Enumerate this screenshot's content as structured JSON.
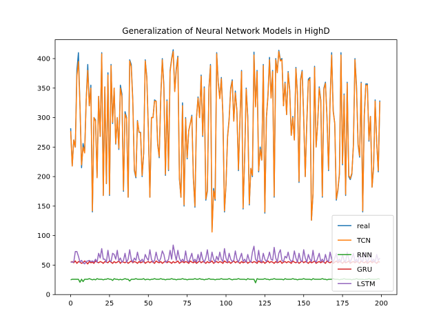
{
  "chart_data": {
    "type": "line",
    "title": "Generalization of Neural Network Models in HighD",
    "xlabel": "",
    "ylabel": "",
    "xlim": [
      -10,
      210
    ],
    "ylim": [
      0,
      432
    ],
    "xticks": [
      0,
      25,
      50,
      75,
      100,
      125,
      150,
      175,
      200
    ],
    "yticks": [
      0,
      50,
      100,
      150,
      200,
      250,
      300,
      350,
      400
    ],
    "grid": false,
    "legend_position": "lower-right",
    "n_points": 200,
    "series": [
      {
        "name": "real",
        "color": "#1f77b4",
        "values": [
          282,
          218,
          262,
          250,
          380,
          410,
          320,
          215,
          256,
          242,
          330,
          390,
          320,
          355,
          140,
          300,
          296,
          200,
          336,
          268,
          410,
          168,
          352,
          188,
          376,
          168,
          390,
          290,
          350,
          255,
          300,
          246,
          355,
          340,
          175,
          310,
          300,
          165,
          398,
          390,
          330,
          210,
          198,
          295,
          275,
          275,
          200,
          240,
          398,
          370,
          282,
          165,
          300,
          300,
          330,
          328,
          256,
          232,
          336,
          400,
          355,
          202,
          330,
          210,
          380,
          400,
          415,
          345,
          384,
          404,
          196,
          165,
          325,
          150,
          300,
          230,
          278,
          290,
          304,
          196,
          148,
          300,
          335,
          300,
          372,
          268,
          352,
          160,
          175,
          350,
          390,
          108,
          180,
          160,
          410,
          360,
          334,
          368,
          305,
          140,
          186,
          268,
          298,
          350,
          364,
          294,
          345,
          312,
          210,
          298,
          380,
          145,
          232,
          350,
          302,
          152,
          214,
          200,
          411,
          320,
          380,
          208,
          250,
          228,
          390,
          138,
          300,
          338,
          402,
          335,
          380,
          165,
          400,
          378,
          414,
          398,
          400,
          320,
          360,
          305,
          378,
          347,
          270,
          302,
          262,
          385,
          340,
          190,
          365,
          380,
          300,
          200,
          292,
          365,
          368,
          126,
          170,
          387,
          250,
          290,
          352,
          330,
          165,
          350,
          360,
          300,
          210,
          330,
          410,
          312,
          290,
          160,
          176,
          204,
          410,
          220,
          340,
          168,
          360,
          200,
          195,
          204,
          254,
          400,
          354,
          254,
          233,
          360,
          140,
          304,
          357,
          357,
          260,
          302,
          182,
          215,
          330,
          258,
          208,
          329
        ]
      },
      {
        "name": "TCN",
        "color": "#ff7f0e",
        "values": [
          277,
          218,
          262,
          250,
          370,
          395,
          320,
          220,
          250,
          240,
          330,
          380,
          320,
          350,
          142,
          300,
          294,
          198,
          336,
          268,
          408,
          168,
          352,
          188,
          372,
          170,
          388,
          292,
          350,
          256,
          300,
          248,
          350,
          335,
          177,
          306,
          298,
          165,
          396,
          386,
          328,
          212,
          200,
          294,
          276,
          274,
          202,
          240,
          396,
          368,
          280,
          165,
          300,
          300,
          328,
          328,
          254,
          234,
          334,
          398,
          352,
          204,
          328,
          212,
          378,
          398,
          412,
          344,
          380,
          402,
          198,
          165,
          320,
          152,
          298,
          232,
          278,
          290,
          302,
          198,
          150,
          300,
          333,
          300,
          370,
          270,
          350,
          162,
          177,
          348,
          388,
          106,
          176,
          162,
          408,
          358,
          332,
          366,
          304,
          142,
          188,
          266,
          296,
          348,
          362,
          294,
          342,
          312,
          212,
          298,
          378,
          147,
          232,
          348,
          300,
          154,
          214,
          202,
          406,
          318,
          378,
          210,
          246,
          228,
          388,
          140,
          300,
          336,
          398,
          333,
          378,
          167,
          398,
          376,
          412,
          396,
          398,
          320,
          358,
          305,
          376,
          345,
          270,
          300,
          262,
          383,
          338,
          192,
          362,
          378,
          300,
          200,
          290,
          362,
          366,
          126,
          172,
          385,
          250,
          290,
          350,
          328,
          167,
          348,
          358,
          300,
          212,
          328,
          406,
          310,
          290,
          162,
          178,
          206,
          406,
          222,
          338,
          170,
          358,
          202,
          197,
          206,
          252,
          398,
          350,
          256,
          235,
          358,
          142,
          302,
          355,
          355,
          262,
          302,
          182,
          217,
          328,
          258,
          210,
          327
        ]
      },
      {
        "name": "RNN",
        "color": "#2ca02c",
        "values": [
          25,
          26,
          26,
          26,
          26,
          26,
          21,
          26,
          22,
          26,
          26,
          26,
          27,
          26,
          25,
          26,
          25,
          27,
          26,
          26,
          26,
          25,
          26,
          26,
          27,
          26,
          26,
          24,
          27,
          26,
          26,
          25,
          26,
          25,
          26,
          27,
          26,
          26,
          23,
          26,
          26,
          26,
          27,
          26,
          26,
          26,
          26,
          27,
          25,
          26,
          26,
          25,
          26,
          26,
          27,
          26,
          26,
          26,
          27,
          26,
          26,
          25,
          26,
          26,
          26,
          27,
          26,
          26,
          25,
          26,
          26,
          26,
          27,
          26,
          26,
          25,
          26,
          26,
          26,
          26,
          27,
          26,
          26,
          27,
          26,
          26,
          25,
          26,
          26,
          27,
          26,
          26,
          26,
          25,
          26,
          26,
          26,
          27,
          26,
          26,
          26,
          26,
          27,
          26,
          25,
          26,
          26,
          26,
          27,
          26,
          26,
          26,
          26,
          25,
          27,
          26,
          26,
          26,
          26,
          20,
          27,
          26,
          26,
          26,
          26,
          27,
          26,
          26,
          25,
          26,
          26,
          27,
          26,
          26,
          26,
          26,
          26,
          25,
          27,
          26,
          26,
          26,
          26,
          27,
          26,
          26,
          25,
          26,
          26,
          26,
          27,
          26,
          26,
          26,
          26,
          25,
          27,
          26,
          26,
          26,
          26,
          26,
          27,
          26,
          26,
          25,
          26,
          26,
          26,
          27,
          26,
          26,
          26,
          25,
          26,
          26,
          27,
          26,
          26,
          26,
          26,
          25,
          26,
          26,
          27,
          26,
          26,
          26,
          26,
          25,
          26,
          26,
          27,
          26,
          26,
          26,
          26,
          26,
          27,
          26
        ]
      },
      {
        "name": "GRU",
        "color": "#d62728",
        "values": [
          55,
          56,
          54,
          57,
          53,
          56,
          55,
          53,
          54,
          57,
          55,
          52,
          56,
          54,
          55,
          53,
          57,
          55,
          54,
          56,
          55,
          53,
          56,
          55,
          54,
          57,
          55,
          53,
          56,
          54,
          55,
          57,
          53,
          56,
          55,
          54,
          56,
          53,
          55,
          57,
          54,
          56,
          55,
          53,
          56,
          54,
          55,
          57,
          53,
          55,
          56,
          54,
          56,
          55,
          53,
          57,
          55,
          54,
          56,
          53,
          55,
          57,
          54,
          56,
          55,
          53,
          56,
          54,
          55,
          57,
          53,
          55,
          56,
          54,
          56,
          55,
          53,
          57,
          55,
          54,
          56,
          53,
          55,
          57,
          54,
          56,
          55,
          53,
          56,
          54,
          55,
          57,
          53,
          55,
          56,
          54,
          56,
          55,
          53,
          57,
          55,
          54,
          56,
          53,
          55,
          57,
          54,
          56,
          55,
          53,
          56,
          54,
          55,
          57,
          53,
          55,
          56,
          54,
          56,
          55,
          53,
          57,
          55,
          54,
          56,
          53,
          55,
          57,
          54,
          56,
          55,
          53,
          56,
          54,
          55,
          57,
          53,
          55,
          56,
          54,
          56,
          55,
          53,
          57,
          55,
          54,
          56,
          53,
          55,
          57,
          54,
          56,
          55,
          53,
          56,
          54,
          55,
          57,
          53,
          55,
          56,
          54,
          56,
          55,
          53,
          57,
          55,
          54,
          56,
          53,
          55,
          57,
          54,
          56,
          55,
          53,
          56,
          54,
          55,
          57,
          53,
          55,
          56,
          54,
          56,
          55,
          53,
          57,
          55,
          54,
          56,
          53,
          55,
          57,
          54,
          56,
          55,
          53,
          56,
          55
        ]
      },
      {
        "name": "LSTM",
        "color": "#9467bd",
        "values": [
          55,
          55,
          55,
          73,
          73,
          65,
          55,
          58,
          54,
          52,
          56,
          57,
          58,
          56,
          57,
          55,
          60,
          55,
          70,
          62,
          78,
          60,
          60,
          55,
          75,
          58,
          56,
          70,
          68,
          60,
          75,
          57,
          62,
          55,
          58,
          70,
          55,
          60,
          76,
          60,
          55,
          62,
          58,
          72,
          60,
          56,
          60,
          55,
          68,
          62,
          58,
          76,
          60,
          55,
          58,
          72,
          60,
          56,
          62,
          74,
          68,
          55,
          56,
          60,
          75,
          60,
          84,
          70,
          58,
          75,
          62,
          56,
          60,
          56,
          74,
          58,
          55,
          62,
          70,
          56,
          60,
          55,
          68,
          56,
          72,
          60,
          55,
          62,
          76,
          58,
          56,
          72,
          60,
          55,
          65,
          58,
          72,
          60,
          56,
          78,
          62,
          55,
          70,
          60,
          56,
          58,
          74,
          60,
          55,
          62,
          70,
          56,
          60,
          55,
          68,
          58,
          55,
          72,
          82,
          60,
          56,
          75,
          58,
          55,
          70,
          60,
          56,
          62,
          72,
          60,
          58,
          80,
          62,
          55,
          70,
          76,
          58,
          56,
          65,
          62,
          72,
          60,
          56,
          58,
          74,
          62,
          55,
          70,
          58,
          56,
          76,
          62,
          55,
          68,
          60,
          56,
          75,
          58,
          55,
          62,
          70,
          56,
          60,
          55,
          68,
          58,
          56,
          72,
          60,
          55,
          62,
          70,
          56,
          60,
          55,
          68,
          58,
          56,
          72,
          60,
          55,
          62,
          70,
          56,
          60,
          55,
          68,
          58,
          56,
          72,
          60,
          55,
          62,
          70,
          56,
          60,
          55,
          68,
          58,
          62
        ]
      }
    ]
  }
}
